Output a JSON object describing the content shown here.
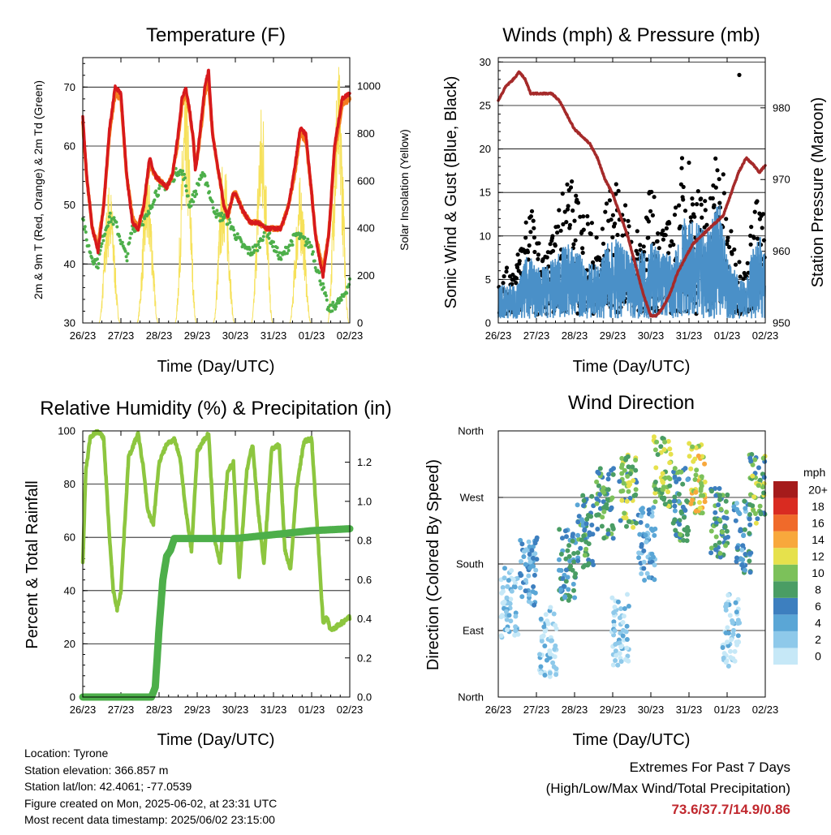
{
  "chart_data": [
    {
      "type": "line",
      "title": "Temperature (F)",
      "xlabel": "Time (Day/UTC)",
      "ylabel": "2m & 9m T (Red, Orange) & 2m Td (Green)",
      "ylabel_right": "Solar Insolation (Yellow)",
      "x_ticks": [
        "26/23",
        "27/23",
        "28/23",
        "29/23",
        "30/23",
        "31/23",
        "01/23",
        "02/23"
      ],
      "ylim": [
        30,
        75
      ],
      "y_ticks": [
        30,
        40,
        50,
        60,
        70
      ],
      "ylim_right": [
        0,
        1120
      ],
      "y_ticks_right": [
        0,
        200,
        400,
        600,
        800,
        1000
      ],
      "grid": true,
      "series": [
        {
          "color": "#d7191c",
          "axis": "left",
          "x": [
            0,
            0.1,
            0.25,
            0.4,
            0.55,
            0.7,
            0.85,
            1.0,
            1.15,
            1.3,
            1.45,
            1.6,
            1.75,
            1.9,
            2.05,
            2.2,
            2.35,
            2.5,
            2.6,
            2.7,
            2.8,
            2.9,
            2.95,
            3.0,
            3.1,
            3.2,
            3.3,
            3.4,
            3.5,
            3.6,
            3.7,
            3.8,
            3.95,
            4.0,
            4.2,
            4.4,
            4.6,
            4.8,
            5.0,
            5.2,
            5.4,
            5.55,
            5.7,
            5.85,
            6.0,
            6.1,
            6.2,
            6.3,
            6.45,
            6.6,
            6.8,
            7.0
          ],
          "values": [
            65,
            55,
            46,
            42,
            50,
            63,
            70,
            69,
            55,
            47,
            46,
            50,
            58,
            55,
            54,
            53,
            55,
            62,
            68,
            70,
            66,
            61,
            56,
            58,
            64,
            70,
            73,
            62,
            58,
            54,
            50,
            48,
            52,
            52,
            49,
            47,
            47,
            46,
            46,
            46,
            50,
            56,
            63,
            62,
            52,
            45,
            41,
            38,
            45,
            60,
            68,
            69
          ]
        },
        {
          "color": "#f47c20",
          "axis": "left",
          "x": [
            0,
            0.1,
            0.25,
            0.4,
            0.55,
            0.7,
            0.85,
            1.0,
            1.15,
            1.3,
            1.45,
            1.6,
            1.75,
            1.9,
            2.05,
            2.2,
            2.35,
            2.5,
            2.6,
            2.7,
            2.8,
            2.9,
            2.95,
            3.0,
            3.1,
            3.2,
            3.3,
            3.4,
            3.5,
            3.6,
            3.7,
            3.8,
            3.95,
            4.0,
            4.2,
            4.4,
            4.6,
            4.8,
            5.0,
            5.2,
            5.4,
            5.55,
            5.7,
            5.85,
            6.0,
            6.1,
            6.2,
            6.3,
            6.45,
            6.6,
            6.8,
            7.0
          ],
          "values": [
            64,
            55,
            46,
            43,
            50,
            62,
            69,
            68,
            55,
            48,
            46,
            50,
            57,
            55,
            54,
            53,
            55,
            61,
            67,
            69,
            66,
            61,
            57,
            58,
            63,
            69,
            71,
            62,
            58,
            54,
            50,
            48,
            52,
            52,
            49,
            47,
            47,
            46,
            46,
            46,
            50,
            55,
            62,
            61,
            52,
            45,
            42,
            39,
            45,
            59,
            67,
            68
          ]
        },
        {
          "color": "#4daf4a",
          "axis": "left",
          "x": [
            0,
            0.1,
            0.25,
            0.4,
            0.55,
            0.7,
            0.85,
            1.0,
            1.15,
            1.3,
            1.5,
            1.7,
            1.9,
            2.1,
            2.3,
            2.5,
            2.65,
            2.8,
            2.95,
            3.1,
            3.25,
            3.4,
            3.55,
            3.7,
            3.85,
            4.0,
            4.2,
            4.4,
            4.6,
            4.8,
            5.0,
            5.2,
            5.4,
            5.6,
            5.8,
            6.0,
            6.1,
            6.2,
            6.3,
            6.45,
            6.6,
            6.8,
            7.0
          ],
          "values": [
            48,
            44,
            41,
            40,
            45,
            48,
            47,
            44,
            41,
            46,
            47,
            48,
            52,
            53,
            54,
            56,
            55,
            50,
            52,
            55,
            54,
            50,
            48,
            48,
            47,
            45,
            43,
            42,
            43,
            46,
            43,
            41,
            43,
            45,
            44,
            43,
            40,
            38,
            36,
            32,
            33,
            34,
            37
          ]
        },
        {
          "color": "#f6e15a",
          "axis": "right",
          "name": "",
          "peaks_day": [
            0.7,
            1.7,
            2.7,
            3.7,
            4.7,
            5.7,
            6.7
          ],
          "peak_values": [
            600,
            650,
            1000,
            720,
            950,
            620,
            1100
          ]
        }
      ]
    },
    {
      "type": "line",
      "title": "Winds (mph) & Pressure (mb)",
      "xlabel": "Time (Day/UTC)",
      "ylabel": "Sonic Wind & Gust (Blue, Black)",
      "ylabel_right": "Station Pressure (Maroon)",
      "x_ticks": [
        "26/23",
        "27/23",
        "28/23",
        "29/23",
        "30/23",
        "31/23",
        "01/23",
        "02/23"
      ],
      "ylim": [
        0,
        30.5
      ],
      "y_ticks": [
        0,
        5,
        10,
        15,
        20,
        25,
        30
      ],
      "ylim_right": [
        950,
        987
      ],
      "y_ticks_right": [
        950,
        960,
        970,
        980
      ],
      "grid": true,
      "series": [
        {
          "color": "#a52a2a",
          "axis": "right",
          "x": [
            0,
            0.2,
            0.4,
            0.55,
            0.7,
            0.85,
            1.0,
            1.2,
            1.4,
            1.6,
            1.8,
            2.0,
            2.2,
            2.4,
            2.6,
            2.8,
            3.0,
            3.2,
            3.4,
            3.6,
            3.8,
            4.0,
            4.15,
            4.3,
            4.5,
            4.7,
            4.9,
            5.1,
            5.3,
            5.5,
            5.7,
            5.9,
            6.1,
            6.3,
            6.5,
            6.7,
            6.85,
            7.0
          ],
          "values": [
            981,
            983,
            984,
            985,
            984,
            982,
            982,
            982,
            982,
            981,
            979,
            977,
            976,
            975,
            973,
            970,
            968,
            965,
            962,
            958,
            954,
            951,
            951,
            952,
            954,
            957,
            959,
            961,
            962,
            963,
            964,
            965,
            968,
            971,
            973,
            972,
            971,
            972
          ]
        },
        {
          "color": "#000000",
          "axis": "left",
          "name": "",
          "envelope_x": [
            0,
            0.5,
            0.8,
            1.0,
            1.2,
            1.5,
            1.8,
            2.0,
            2.3,
            2.6,
            3.0,
            3.3,
            3.6,
            4.0,
            4.3,
            4.6,
            4.9,
            5.2,
            5.5,
            5.8,
            6.0,
            6.3,
            6.5,
            6.7,
            7.0
          ],
          "envelope_max": [
            5,
            8,
            16,
            10,
            8,
            11,
            20,
            15,
            14,
            10,
            17,
            14,
            10,
            16,
            12,
            12,
            22,
            16,
            15,
            23,
            12,
            8,
            6,
            15,
            13
          ]
        },
        {
          "color": "#4a90c8",
          "axis": "left",
          "name": "",
          "envelope_x": [
            0,
            0.5,
            0.8,
            1.0,
            1.2,
            1.5,
            1.8,
            2.0,
            2.3,
            2.6,
            3.0,
            3.3,
            3.6,
            4.0,
            4.3,
            4.6,
            4.9,
            5.2,
            5.5,
            5.8,
            6.0,
            6.3,
            6.5,
            6.7,
            7.0
          ],
          "envelope_max": [
            4,
            4,
            8,
            6,
            6,
            7,
            9,
            8,
            7,
            6,
            10,
            8,
            7,
            9,
            8,
            7,
            12,
            11,
            10,
            14,
            7,
            5,
            4,
            10,
            9
          ]
        }
      ]
    },
    {
      "type": "line",
      "title": "Relative Humidity (%) & Precipitation (in)",
      "xlabel": "Time (Day/UTC)",
      "ylabel": "Percent & Total Rainfall",
      "x_ticks": [
        "26/23",
        "27/23",
        "28/23",
        "29/23",
        "30/23",
        "31/23",
        "01/23",
        "02/23"
      ],
      "ylim": [
        0,
        100
      ],
      "y_ticks": [
        0,
        20,
        40,
        60,
        80,
        100
      ],
      "ylim_right": [
        0,
        1.36
      ],
      "y_ticks_right": [
        "0.0",
        "0.2",
        "0.4",
        "0.6",
        "0.8",
        "1.0",
        "1.2"
      ],
      "grid": true,
      "series": [
        {
          "color": "#8dc63f",
          "axis": "left",
          "x": [
            0,
            0.08,
            0.2,
            0.4,
            0.55,
            0.7,
            0.8,
            0.9,
            1.0,
            1.2,
            1.45,
            1.6,
            1.7,
            1.85,
            2.0,
            2.2,
            2.4,
            2.55,
            2.7,
            2.85,
            3.0,
            3.15,
            3.3,
            3.45,
            3.6,
            3.8,
            3.95,
            4.1,
            4.3,
            4.45,
            4.6,
            4.75,
            4.95,
            5.15,
            5.3,
            5.45,
            5.6,
            5.8,
            6.0,
            6.2,
            6.3,
            6.4,
            6.5,
            6.6,
            7.0
          ],
          "values": [
            50,
            85,
            98,
            100,
            97,
            60,
            40,
            33,
            40,
            90,
            99,
            85,
            70,
            65,
            88,
            95,
            97,
            90,
            70,
            55,
            92,
            96,
            99,
            60,
            50,
            85,
            88,
            45,
            85,
            95,
            70,
            50,
            93,
            95,
            55,
            48,
            78,
            96,
            97,
            52,
            28,
            30,
            25,
            26,
            30
          ]
        },
        {
          "color": "#4daf4a",
          "axis": "right",
          "x": [
            0,
            1.0,
            1.8,
            1.9,
            2.0,
            2.1,
            2.2,
            2.3,
            2.4,
            3.0,
            4.0,
            5.0,
            6.0,
            7.0
          ],
          "values": [
            0,
            0,
            0,
            0.05,
            0.35,
            0.6,
            0.72,
            0.75,
            0.81,
            0.81,
            0.81,
            0.83,
            0.85,
            0.86
          ]
        }
      ]
    },
    {
      "type": "scatter",
      "title": "Wind Direction",
      "xlabel": "Time (Day/UTC)",
      "ylabel": "Direction (Colored By Speed)",
      "x_ticks": [
        "26/23",
        "27/23",
        "28/23",
        "29/23",
        "30/23",
        "31/23",
        "01/23",
        "02/23"
      ],
      "y_ticks": [
        "North",
        "East",
        "South",
        "West",
        "North"
      ],
      "grid": true,
      "colorbar": {
        "label": "mph",
        "levels": [
          "0",
          "2",
          "4",
          "6",
          "8",
          "10",
          "12",
          "14",
          "16",
          "18",
          "20+"
        ],
        "colors": [
          "#c6e8f7",
          "#8ec9ea",
          "#5aa6d6",
          "#3d7fbf",
          "#4a9d64",
          "#7cc15a",
          "#e6e14c",
          "#f8a83c",
          "#f06a2a",
          "#d92b21",
          "#a51b1b"
        ]
      },
      "cluster_centers": [
        [
          0.3,
          1.4
        ],
        [
          0.8,
          1.9
        ],
        [
          1.3,
          0.8
        ],
        [
          1.8,
          2.0
        ],
        [
          2.3,
          2.5
        ],
        [
          2.8,
          2.9
        ],
        [
          3.2,
          1.0
        ],
        [
          3.4,
          3.1
        ],
        [
          3.9,
          2.3
        ],
        [
          4.3,
          3.4
        ],
        [
          4.8,
          2.9
        ],
        [
          5.2,
          3.3
        ],
        [
          5.8,
          2.6
        ],
        [
          6.1,
          1.0
        ],
        [
          6.4,
          2.4
        ],
        [
          6.8,
          3.1
        ]
      ],
      "cluster_speeds": [
        3,
        5,
        3,
        7,
        8,
        9,
        2,
        10,
        5,
        11,
        8,
        13,
        9,
        2,
        6,
        10
      ]
    }
  ],
  "info": {
    "location": "Location: Tyrone",
    "elevation": "Station elevation: 366.857 m",
    "latlon": "Station lat/lon: 42.4061; -77.0539",
    "created": "Figure created on Mon, 2025-06-02, at 23:31 UTC",
    "recent": "Most recent data timestamp: 2025/06/02 23:15:00"
  },
  "extremes": {
    "line1": "Extremes For Past 7 Days",
    "line2": "(High/Low/Max Wind/Total Precipitation)",
    "values": "73.6/37.7/14.9/0.86"
  }
}
